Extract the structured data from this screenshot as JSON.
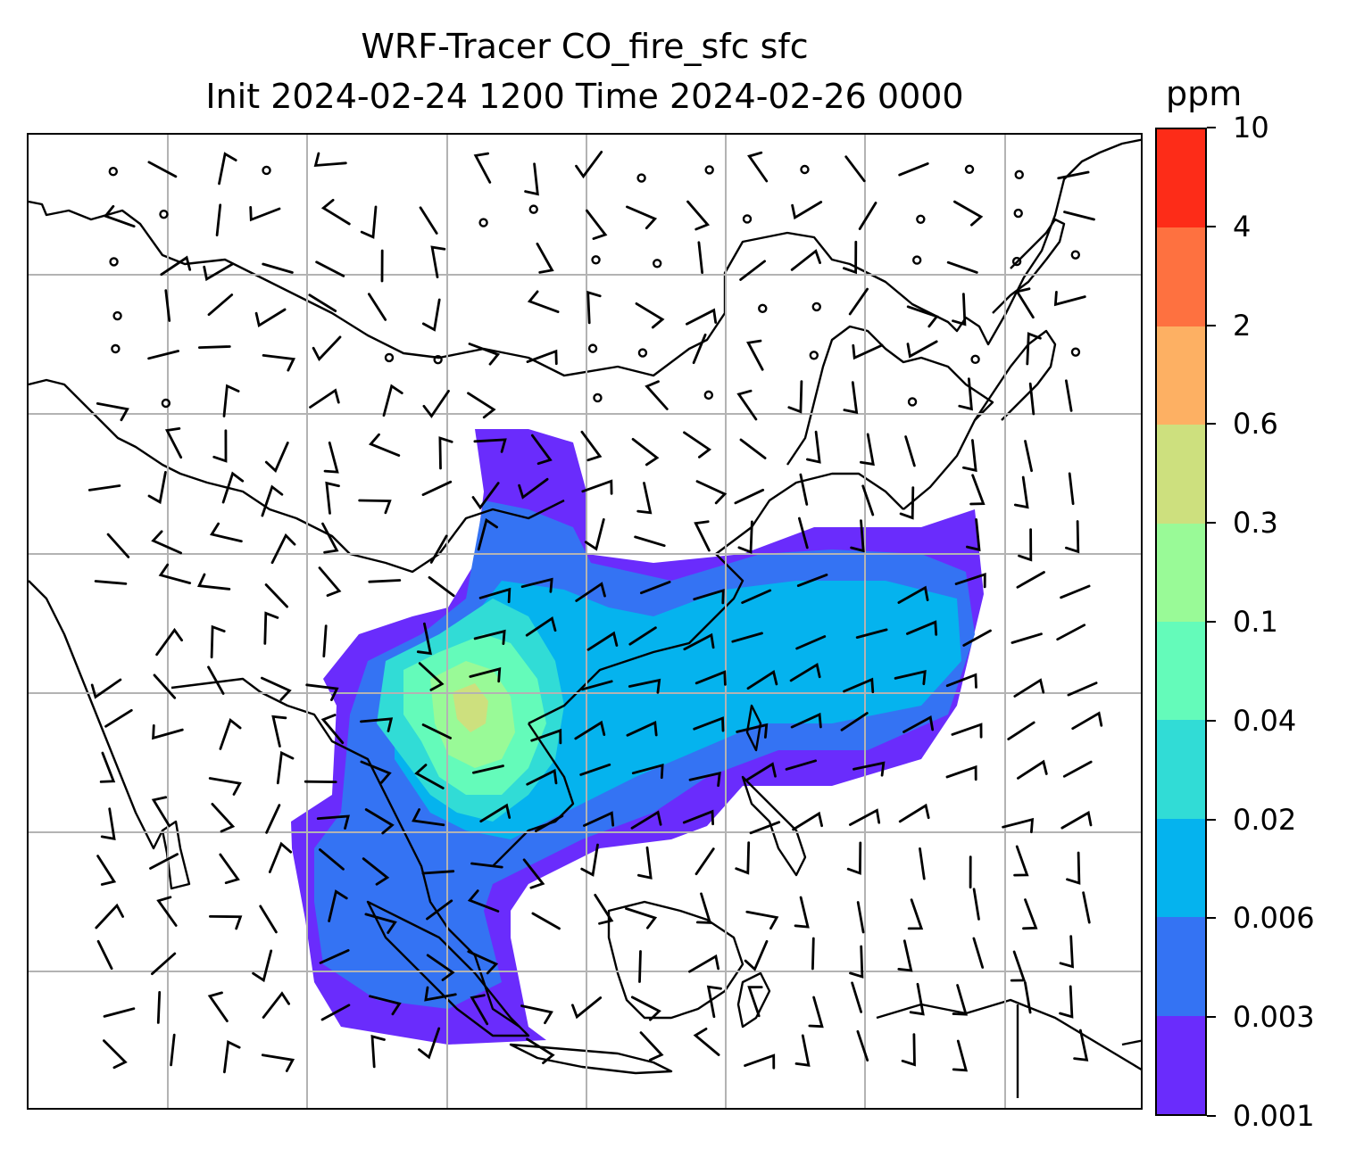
{
  "title": {
    "line1": "WRF-Tracer CO_fire_sfc sfc",
    "line2": "Init 2024-02-24 1200 Time 2024-02-26 0000"
  },
  "colorbar": {
    "unit": "ppm",
    "levels": [
      "0.001",
      "0.003",
      "0.006",
      "0.02",
      "0.04",
      "0.1",
      "0.3",
      "0.6",
      "2",
      "4",
      "10"
    ],
    "colors": [
      "#6a2cfc",
      "#3473f3",
      "#05b3ee",
      "#31dcd6",
      "#64fbba",
      "#99fa97",
      "#cde07e",
      "#fdb063",
      "#fe7140",
      "#fd2c18"
    ]
  },
  "map": {
    "gridlines": true,
    "grid_color": "#b3b3b3",
    "coastline_color": "#000000",
    "wind_symbols": "wind barbs and calm circles"
  }
}
